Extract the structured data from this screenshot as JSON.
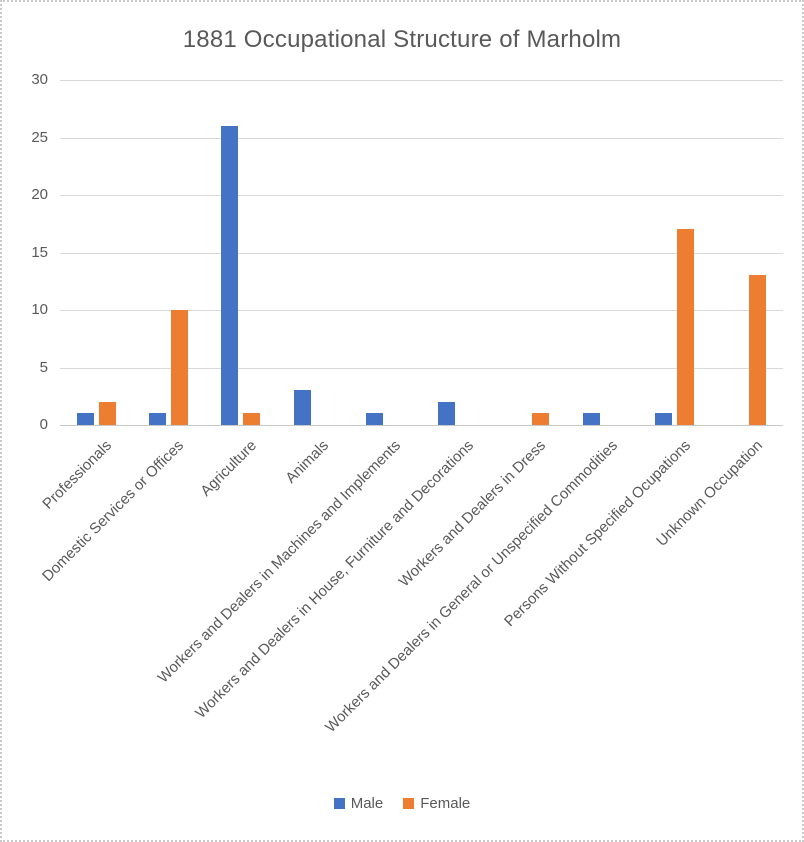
{
  "title": "1881 Occupational Structure of Marholm",
  "chart_data": {
    "type": "bar",
    "title": "1881 Occupational Structure of Marholm",
    "categories": [
      "Professionals",
      "Domestic Services or Offices",
      "Agriculture",
      "Animals",
      "Workers and Dealers in Machines and Implements",
      "Workers and Dealers in House, Furniture and Decorations",
      "Workers and Dealers in Dress",
      "Workers and Dealers in General or Unspecified Commodities",
      "Persons Without Specified Ocupations",
      "Unknown Occupation"
    ],
    "series": [
      {
        "name": "Male",
        "color": "#4472C4",
        "values": [
          1,
          1,
          26,
          3,
          1,
          2,
          0,
          1,
          1,
          0
        ]
      },
      {
        "name": "Female",
        "color": "#ED7D31",
        "values": [
          2,
          10,
          1,
          0,
          0,
          0,
          1,
          0,
          17,
          13
        ]
      }
    ],
    "xlabel": "",
    "ylabel": "",
    "ylim": [
      0,
      30
    ],
    "yticks": [
      0,
      5,
      10,
      15,
      20,
      25,
      30
    ],
    "grid": true,
    "legend_position": "bottom"
  },
  "colors": {
    "text": "#595959",
    "gridline": "#D9D9D9",
    "axis": "#C9C9C9",
    "background": "#FFFFFF",
    "frame_border": "#C9C9C9"
  }
}
